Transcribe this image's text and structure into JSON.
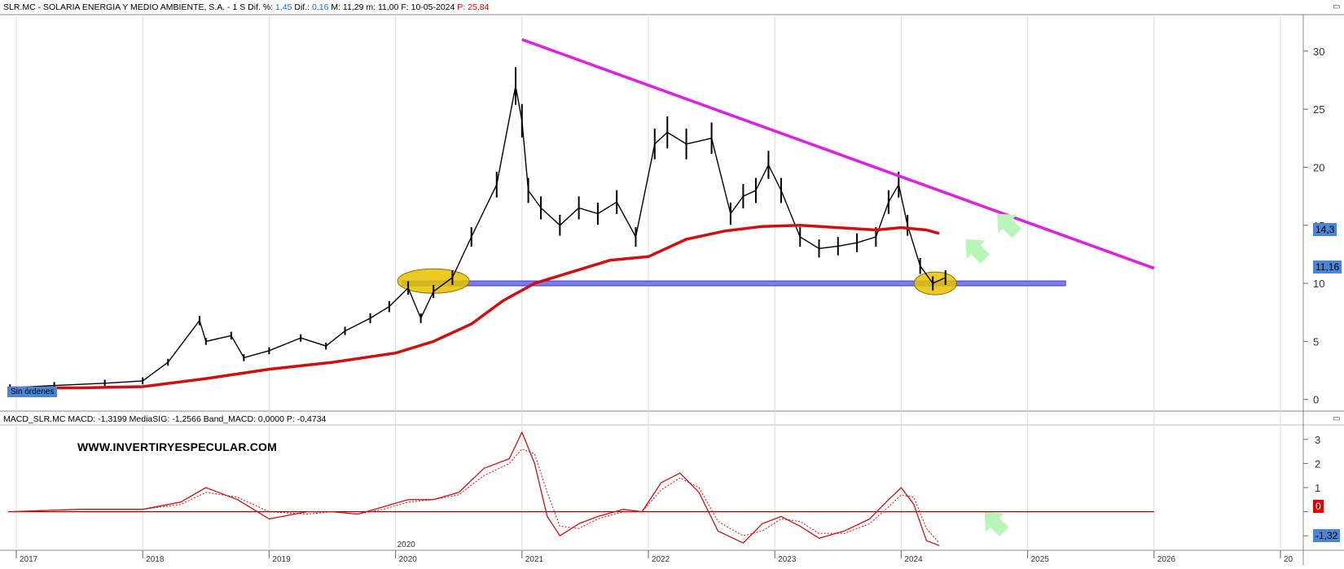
{
  "header": {
    "symbol": "SLR.MC",
    "name": "SOLARIA ENERGIA Y MEDIO AMBIENTE, S.A.",
    "period": "1 S",
    "dif_pct_label": "Dif. %:",
    "dif_pct": "1,45",
    "dif_label": "Dif.:",
    "dif": "0,16",
    "max_label": "M:",
    "max": "11,29",
    "min_label": "m:",
    "min": "11,00",
    "date_label": "F:",
    "date": "10-05-2024",
    "p_label": "P:",
    "p": "25,84"
  },
  "macd_header": {
    "name": "MACD_SLR.MC",
    "macd_label": "MACD:",
    "macd": "-1,3199",
    "sig_label": "MediaSIG:",
    "sig": "-1,2566",
    "band_label": "Band_MACD:",
    "band": "0,0000",
    "p_label": "P:",
    "p": "-0,4734"
  },
  "watermark": "WWW.INVERTIRYESPECULAR.COM",
  "badge": "Sin órdenes",
  "price_tags": [
    {
      "text": "14,3",
      "color": "#4a86d8"
    },
    {
      "text": "11,16",
      "color": "#4a86d8"
    }
  ],
  "macd_tags": [
    {
      "text": "0",
      "color": "#e00000"
    },
    {
      "text": "-1,32",
      "color": "#4a86d8"
    }
  ],
  "colors": {
    "price": "#000000",
    "sma": "#d01010",
    "trendline": "#e020e0",
    "support": "#7b7bf0",
    "highlight": "#e6c200",
    "arrow": "#b8f5b8",
    "macd": "#d01010",
    "signal": "#d01010"
  },
  "chart_data": [
    {
      "type": "line",
      "ylim": [
        -1,
        33
      ],
      "y_ticks": [
        0,
        5,
        10,
        15,
        20,
        25,
        30
      ],
      "x_ticks": [
        "2017",
        "2018",
        "2019",
        "2020",
        "2021",
        "2022",
        "2023",
        "2024",
        "2025",
        "2026",
        "20"
      ],
      "x_label_extra": "2020",
      "grid": true,
      "series": [
        {
          "x": [
            2016.95,
            2017.3,
            2017.7,
            2018.0,
            2018.2,
            2018.45,
            2018.5,
            2018.7,
            2018.8,
            2019.0,
            2019.25,
            2019.45,
            2019.6,
            2019.8,
            2019.95,
            2020.1,
            2020.2,
            2020.3,
            2020.45,
            2020.6,
            2020.8,
            2020.95,
            2021.0,
            2021.05,
            2021.15,
            2021.3,
            2021.45,
            2021.6,
            2021.75,
            2021.9,
            2022.05,
            2022.15,
            2022.3,
            2022.5,
            2022.65,
            2022.75,
            2022.85,
            2022.95,
            2023.05,
            2023.2,
            2023.35,
            2023.5,
            2023.65,
            2023.8,
            2023.9,
            2023.98,
            2024.05,
            2024.15,
            2024.25,
            2024.35
          ],
          "values": [
            1.0,
            1.2,
            1.4,
            1.6,
            3.2,
            6.8,
            5.0,
            5.5,
            3.6,
            4.2,
            5.3,
            4.6,
            5.9,
            7.0,
            8.0,
            9.6,
            7.0,
            9.3,
            10.5,
            14.0,
            18.5,
            27.0,
            24.0,
            18.0,
            16.5,
            15.0,
            16.5,
            16.0,
            17.0,
            14.0,
            22.0,
            23.0,
            22.0,
            22.5,
            16.0,
            17.5,
            18.0,
            20.2,
            18.0,
            14.0,
            13.0,
            13.2,
            13.5,
            14.0,
            17.0,
            18.5,
            15.0,
            11.5,
            10.0,
            10.5
          ]
        },
        {
          "x": [
            2016.95,
            2017.5,
            2018.0,
            2018.5,
            2019.0,
            2019.5,
            2020.0,
            2020.3,
            2020.6,
            2020.85,
            2021.1,
            2021.4,
            2021.7,
            2022.0,
            2022.3,
            2022.6,
            2022.9,
            2023.2,
            2023.5,
            2023.8,
            2024.0,
            2024.2,
            2024.3
          ],
          "values": [
            1.0,
            1.0,
            1.1,
            1.8,
            2.6,
            3.2,
            4.0,
            5.0,
            6.5,
            8.5,
            10.0,
            11.0,
            12.0,
            12.3,
            13.8,
            14.5,
            14.9,
            15.0,
            14.8,
            14.6,
            14.8,
            14.6,
            14.3
          ]
        }
      ],
      "annotations": {
        "trendline_start": [
          2021.0,
          31.0
        ],
        "trendline_end": [
          2026.0,
          11.3
        ],
        "support_level": 10.0,
        "support_start": 2020.05,
        "support_end": 2025.3
      }
    },
    {
      "type": "line",
      "ylim": [
        -1.6,
        3.6
      ],
      "y_ticks": [
        -1,
        0,
        1,
        2,
        3
      ],
      "series": [
        {
          "x": [
            2016.95,
            2017.5,
            2018.0,
            2018.3,
            2018.5,
            2018.75,
            2019.0,
            2019.3,
            2019.5,
            2019.7,
            2019.9,
            2020.1,
            2020.3,
            2020.5,
            2020.7,
            2020.9,
            2021.0,
            2021.1,
            2021.2,
            2021.3,
            2021.45,
            2021.6,
            2021.8,
            2021.95,
            2022.1,
            2022.25,
            2022.4,
            2022.55,
            2022.75,
            2022.9,
            2023.05,
            2023.2,
            2023.35,
            2023.55,
            2023.75,
            2023.9,
            2024.0,
            2024.1,
            2024.2,
            2024.3
          ],
          "values": [
            0.0,
            0.1,
            0.1,
            0.4,
            1.0,
            0.5,
            -0.3,
            0.0,
            0.0,
            -0.1,
            0.2,
            0.5,
            0.5,
            0.8,
            1.8,
            2.2,
            3.3,
            2.0,
            -0.2,
            -1.0,
            -0.5,
            -0.2,
            0.1,
            0.0,
            1.2,
            1.6,
            0.8,
            -0.8,
            -1.3,
            -0.5,
            -0.2,
            -0.6,
            -1.1,
            -0.8,
            -0.3,
            0.5,
            1.0,
            0.3,
            -1.2,
            -1.4
          ]
        },
        {
          "x": [
            2016.95,
            2017.5,
            2018.0,
            2018.3,
            2018.5,
            2018.75,
            2019.0,
            2019.3,
            2019.5,
            2019.7,
            2019.9,
            2020.1,
            2020.3,
            2020.5,
            2020.7,
            2020.9,
            2021.0,
            2021.1,
            2021.2,
            2021.3,
            2021.45,
            2021.6,
            2021.8,
            2021.95,
            2022.1,
            2022.25,
            2022.4,
            2022.55,
            2022.75,
            2022.9,
            2023.05,
            2023.2,
            2023.35,
            2023.55,
            2023.75,
            2023.9,
            2024.0,
            2024.1,
            2024.2,
            2024.3
          ],
          "values": [
            0.0,
            0.1,
            0.1,
            0.3,
            0.8,
            0.6,
            0.0,
            -0.1,
            0.0,
            -0.1,
            0.1,
            0.4,
            0.5,
            0.7,
            1.5,
            2.0,
            2.6,
            2.4,
            0.8,
            -0.6,
            -0.7,
            -0.3,
            0.0,
            0.0,
            0.9,
            1.4,
            1.0,
            -0.4,
            -1.0,
            -0.8,
            -0.3,
            -0.4,
            -0.9,
            -0.9,
            -0.5,
            0.2,
            0.7,
            0.6,
            -0.7,
            -1.3
          ]
        }
      ],
      "zero_line": 0
    }
  ]
}
